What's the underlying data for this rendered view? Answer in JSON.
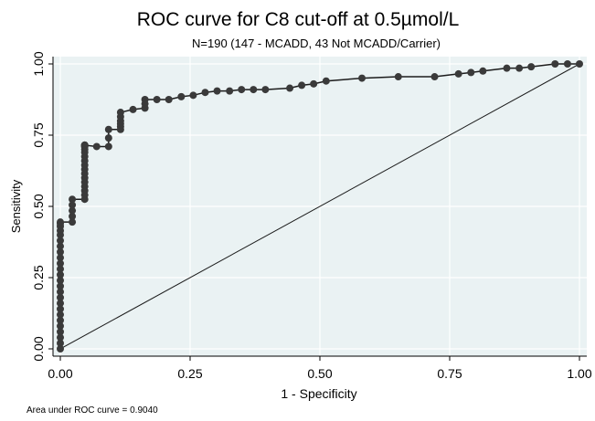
{
  "chart_data": {
    "type": "line",
    "title": "ROC curve for C8 cut-off at 0.5µmol/L",
    "subtitle": "N=190 (147 - MCADD, 43 Not MCADD/Carrier)",
    "xlabel": "1 - Specificity",
    "ylabel": "Sensitivity",
    "note": "Area under ROC curve = 0.9040",
    "xlim": [
      0,
      1
    ],
    "ylim": [
      0,
      1
    ],
    "xticks": [
      "0.00",
      "0.25",
      "0.50",
      "0.75",
      "1.00"
    ],
    "yticks": [
      "0.00",
      "0.25",
      "0.50",
      "0.75",
      "1.00"
    ],
    "grid": true,
    "colors": {
      "background": "#ffffff",
      "plot_background": "#eaf2f3",
      "grid": "#ffffff",
      "line": "#1c1c1c",
      "marker": "#3a3a3a"
    },
    "series": [
      {
        "x": [
          0.0,
          0.0,
          0.0,
          0.0,
          0.0,
          0.0,
          0.0,
          0.0,
          0.0,
          0.0,
          0.0,
          0.0,
          0.0,
          0.0,
          0.0,
          0.0,
          0.0,
          0.0,
          0.0,
          0.0,
          0.0,
          0.0,
          0.0,
          0.0,
          0.0,
          0.023,
          0.023,
          0.023,
          0.023,
          0.023,
          0.047,
          0.047,
          0.047,
          0.047,
          0.047,
          0.047,
          0.047,
          0.047,
          0.047,
          0.047,
          0.047,
          0.047,
          0.047,
          0.047,
          0.047,
          0.047,
          0.047,
          0.047,
          0.07,
          0.093,
          0.093,
          0.093,
          0.116,
          0.116,
          0.116,
          0.116,
          0.116,
          0.116,
          0.14,
          0.163,
          0.163,
          0.163,
          0.186,
          0.209,
          0.233,
          0.256,
          0.279,
          0.302,
          0.326,
          0.349,
          0.372,
          0.395,
          0.442,
          0.465,
          0.488,
          0.512,
          0.581,
          0.651,
          0.721,
          0.767,
          0.791,
          0.814,
          0.86,
          0.884,
          0.907,
          0.953,
          0.977,
          1.0
        ],
        "y": [
          0.0,
          0.02,
          0.04,
          0.06,
          0.08,
          0.1,
          0.12,
          0.14,
          0.16,
          0.18,
          0.2,
          0.22,
          0.24,
          0.26,
          0.28,
          0.3,
          0.32,
          0.34,
          0.36,
          0.38,
          0.4,
          0.415,
          0.43,
          0.44,
          0.445,
          0.445,
          0.465,
          0.485,
          0.505,
          0.525,
          0.525,
          0.54,
          0.555,
          0.57,
          0.585,
          0.6,
          0.615,
          0.63,
          0.645,
          0.66,
          0.675,
          0.69,
          0.7,
          0.71,
          0.71,
          0.715,
          0.715,
          0.715,
          0.71,
          0.71,
          0.74,
          0.77,
          0.77,
          0.78,
          0.79,
          0.8,
          0.815,
          0.83,
          0.84,
          0.845,
          0.86,
          0.875,
          0.875,
          0.875,
          0.885,
          0.89,
          0.9,
          0.905,
          0.905,
          0.91,
          0.91,
          0.91,
          0.915,
          0.925,
          0.93,
          0.94,
          0.95,
          0.955,
          0.955,
          0.965,
          0.97,
          0.975,
          0.985,
          0.985,
          0.99,
          1.0,
          1.0,
          1.0
        ]
      }
    ],
    "reference_line": {
      "x": [
        0,
        1
      ],
      "y": [
        0,
        1
      ]
    }
  }
}
